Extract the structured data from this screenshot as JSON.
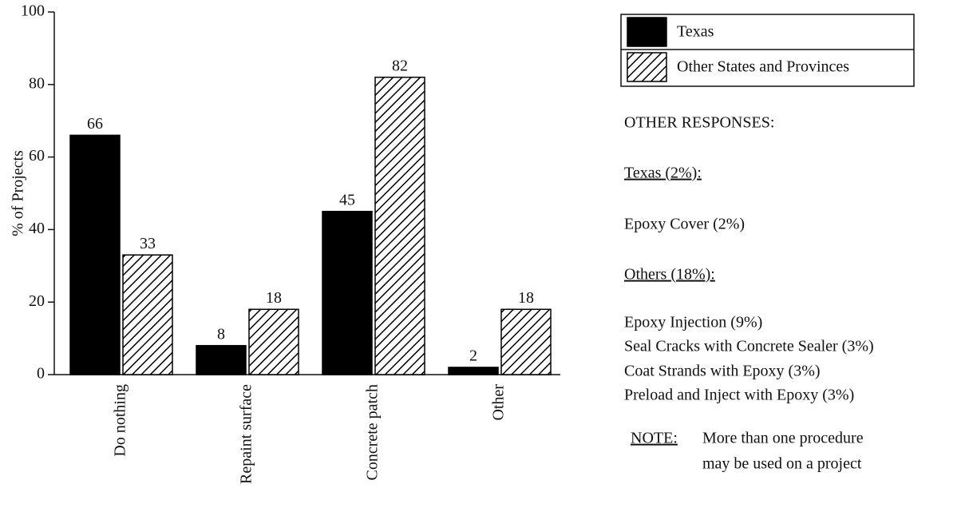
{
  "chart_data": {
    "type": "bar",
    "ylabel": "% of Projects",
    "categories": [
      "Do nothing",
      "Repaint surface",
      "Concrete patch",
      "Other"
    ],
    "series": [
      {
        "name": "Texas",
        "color": "#000000",
        "values": [
          66,
          8,
          45,
          2
        ]
      },
      {
        "name": "Other States and Provinces",
        "color": "#000000",
        "hatch": true,
        "values": [
          33,
          18,
          82,
          18
        ]
      }
    ],
    "ylim": [
      0,
      100
    ],
    "yticks": [
      0,
      20,
      40,
      60,
      80,
      100
    ],
    "annotations": [
      "OTHER RESPONSES:",
      "Texas (2%):",
      "Epoxy Cover (2%)",
      "Others (18%):",
      "Epoxy Injection (9%)",
      "Seal Cracks with Concrete Sealer (3%)",
      "Coat Strands with Epoxy (3%)",
      "Preload and Inject with Epoxy (3%)",
      "NOTE:",
      "More than one procedure",
      "may be used on a project"
    ]
  }
}
